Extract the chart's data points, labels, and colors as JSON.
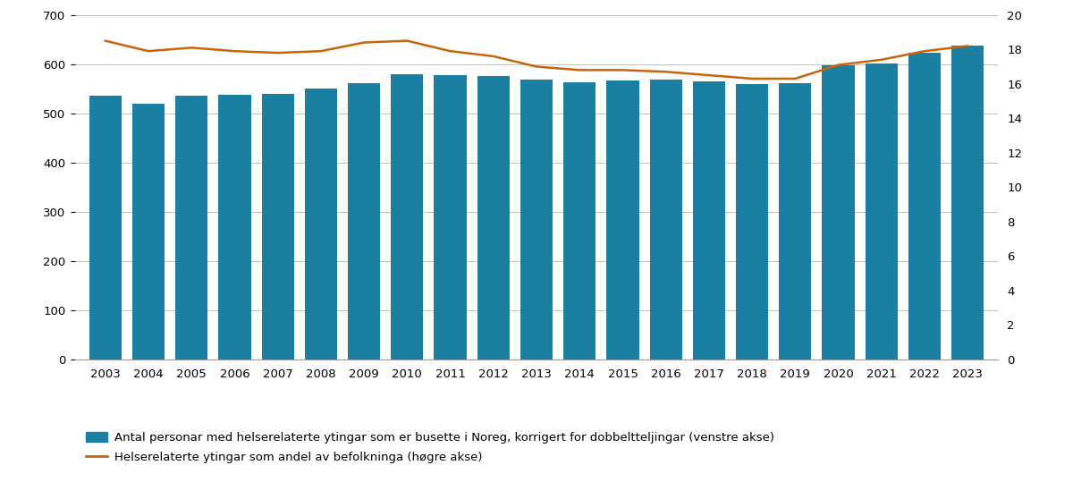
{
  "years": [
    2003,
    2004,
    2005,
    2006,
    2007,
    2008,
    2009,
    2010,
    2011,
    2012,
    2013,
    2014,
    2015,
    2016,
    2017,
    2018,
    2019,
    2020,
    2021,
    2022,
    2023
  ],
  "bar_values": [
    535,
    520,
    535,
    537,
    540,
    550,
    562,
    580,
    578,
    576,
    568,
    563,
    566,
    569,
    565,
    559,
    562,
    597,
    601,
    624,
    638
  ],
  "line_values": [
    18.5,
    17.9,
    18.1,
    17.9,
    17.8,
    17.9,
    18.4,
    18.5,
    17.9,
    17.6,
    17.0,
    16.8,
    16.8,
    16.7,
    16.5,
    16.3,
    16.3,
    17.1,
    17.4,
    17.9,
    18.2
  ],
  "bar_color": "#1a7fa0",
  "line_color": "#c8640a",
  "bar_label": "Antal personar med helserelaterte ytingar som er busette i Noreg, korrigert for dobbeltteljingar (venstre akse)",
  "line_label": "Helserelaterte ytingar som andel av befolkninga (høgre akse)",
  "left_ylim": [
    0,
    700
  ],
  "left_yticks": [
    0,
    100,
    200,
    300,
    400,
    500,
    600,
    700
  ],
  "right_ylim": [
    0,
    20
  ],
  "right_yticks": [
    0,
    2,
    4,
    6,
    8,
    10,
    12,
    14,
    16,
    18,
    20
  ],
  "background_color": "#ffffff",
  "grid_color": "#c0c0c0"
}
